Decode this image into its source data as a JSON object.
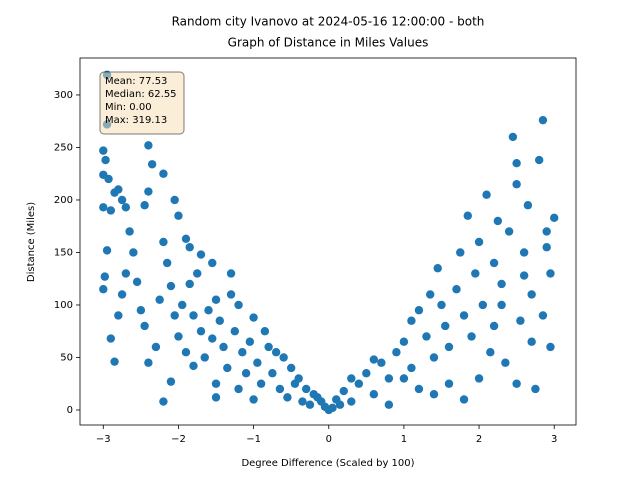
{
  "chart_data": {
    "type": "scatter",
    "title": "Random city Ivanovo at 2024-05-16 12:00:00  - both",
    "subtitle": "Graph of Distance in Miles Values",
    "xlabel": "Degree Difference (Scaled by 100)",
    "ylabel": "Distance (Miles)",
    "color": "#1f77b4",
    "xlim": [
      -3.31,
      3.29
    ],
    "ylim": [
      -14.3,
      335.2
    ],
    "xticks": [
      {
        "value": -3,
        "label": "−3"
      },
      {
        "value": -2,
        "label": "−2"
      },
      {
        "value": -1,
        "label": "−1"
      },
      0,
      1,
      2,
      3
    ],
    "yticks": [
      0,
      50,
      100,
      150,
      200,
      250,
      300
    ],
    "annotation": [
      "Mean: 77.53",
      "Median: 62.55",
      "Min: 0.00",
      "Max: 319.13"
    ],
    "x": [
      -2.95,
      -2.95,
      -3,
      -2.97,
      -3,
      -2.93,
      -3,
      -2.9,
      -2.85,
      -2.8,
      -2.75,
      -2.7,
      -2.4,
      -2.35,
      -2.4,
      -2.45,
      -2.2,
      -2.05,
      -2.0,
      -1.9,
      -1.85,
      -1.7,
      -1.55,
      -1.3,
      -1.3,
      -1.2,
      -1.0,
      -0.85,
      -0.8,
      -0.7,
      -0.6,
      -0.5,
      -0.4,
      -0.3,
      -0.2,
      -0.1,
      0,
      -2.2,
      -2.1,
      -1.5,
      -1.8,
      -1.5,
      -1.0,
      -1.2,
      -3,
      -2.98,
      -2.95,
      -2.9,
      -2.85,
      -2.8,
      -2.75,
      -2.7,
      -2.65,
      -2.6,
      -2.55,
      -2.5,
      -2.45,
      -2.4,
      -2.3,
      -2.25,
      -2.2,
      -2.15,
      -2.1,
      -2.05,
      -2.0,
      -1.95,
      -1.9,
      -1.85,
      -1.8,
      -1.75,
      -1.7,
      -1.65,
      -1.6,
      -1.55,
      -1.5,
      -1.45,
      -1.4,
      -1.35,
      -1.25,
      -1.15,
      -1.1,
      -1.05,
      -0.95,
      -0.9,
      -0.75,
      -0.65,
      -0.55,
      -0.45,
      -0.35,
      -0.25,
      -0.15,
      -0.05,
      0.05,
      0.1,
      0.2,
      0.3,
      0.4,
      0.5,
      0.6,
      0.7,
      0.8,
      0.9,
      1.0,
      1.1,
      1.1,
      1.2,
      1.3,
      1.35,
      1.4,
      1.45,
      1.5,
      1.55,
      1.6,
      1.7,
      1.75,
      1.8,
      1.8,
      1.85,
      1.9,
      1.95,
      2.0,
      2.05,
      2.1,
      2.15,
      2.2,
      2.25,
      2.3,
      2.35,
      2.4,
      2.45,
      2.5,
      2.5,
      2.55,
      2.6,
      2.65,
      2.7,
      2.75,
      2.8,
      2.85,
      2.9,
      2.95,
      3.0,
      2.95,
      2.85,
      2.7,
      2.5,
      2.3,
      2.0,
      1.6,
      1.2,
      0.8,
      0.6,
      1.4,
      2.2,
      2.6,
      2.9,
      1.0,
      0.3,
      0.15
    ],
    "values": [
      319.13,
      272,
      247,
      238,
      224,
      220,
      193,
      190,
      207,
      210,
      200,
      193,
      252,
      234,
      208,
      195,
      225,
      200,
      185,
      163,
      155,
      148,
      140,
      130,
      110,
      100,
      88,
      75,
      60,
      55,
      50,
      40,
      30,
      20,
      15,
      8,
      0.0,
      8,
      27,
      25,
      42,
      12,
      10,
      20,
      115,
      127,
      152,
      68,
      46,
      90,
      110,
      130,
      170,
      150,
      122,
      95,
      80,
      45,
      60,
      105,
      160,
      140,
      118,
      90,
      70,
      100,
      55,
      120,
      90,
      130,
      75,
      50,
      95,
      68,
      105,
      85,
      60,
      40,
      75,
      55,
      35,
      65,
      45,
      25,
      35,
      20,
      12,
      25,
      8,
      5,
      12,
      3,
      2,
      10,
      18,
      8,
      25,
      35,
      15,
      45,
      30,
      55,
      65,
      40,
      85,
      95,
      70,
      110,
      50,
      135,
      100,
      80,
      60,
      115,
      150,
      90,
      10,
      185,
      70,
      130,
      160,
      100,
      205,
      55,
      140,
      180,
      120,
      45,
      170,
      260,
      235,
      215,
      85,
      150,
      195,
      110,
      20,
      238,
      276,
      170,
      60,
      183,
      130,
      90,
      65,
      25,
      100,
      30,
      25,
      20,
      5,
      48,
      15,
      80,
      128,
      155,
      30,
      30,
      5
    ]
  }
}
